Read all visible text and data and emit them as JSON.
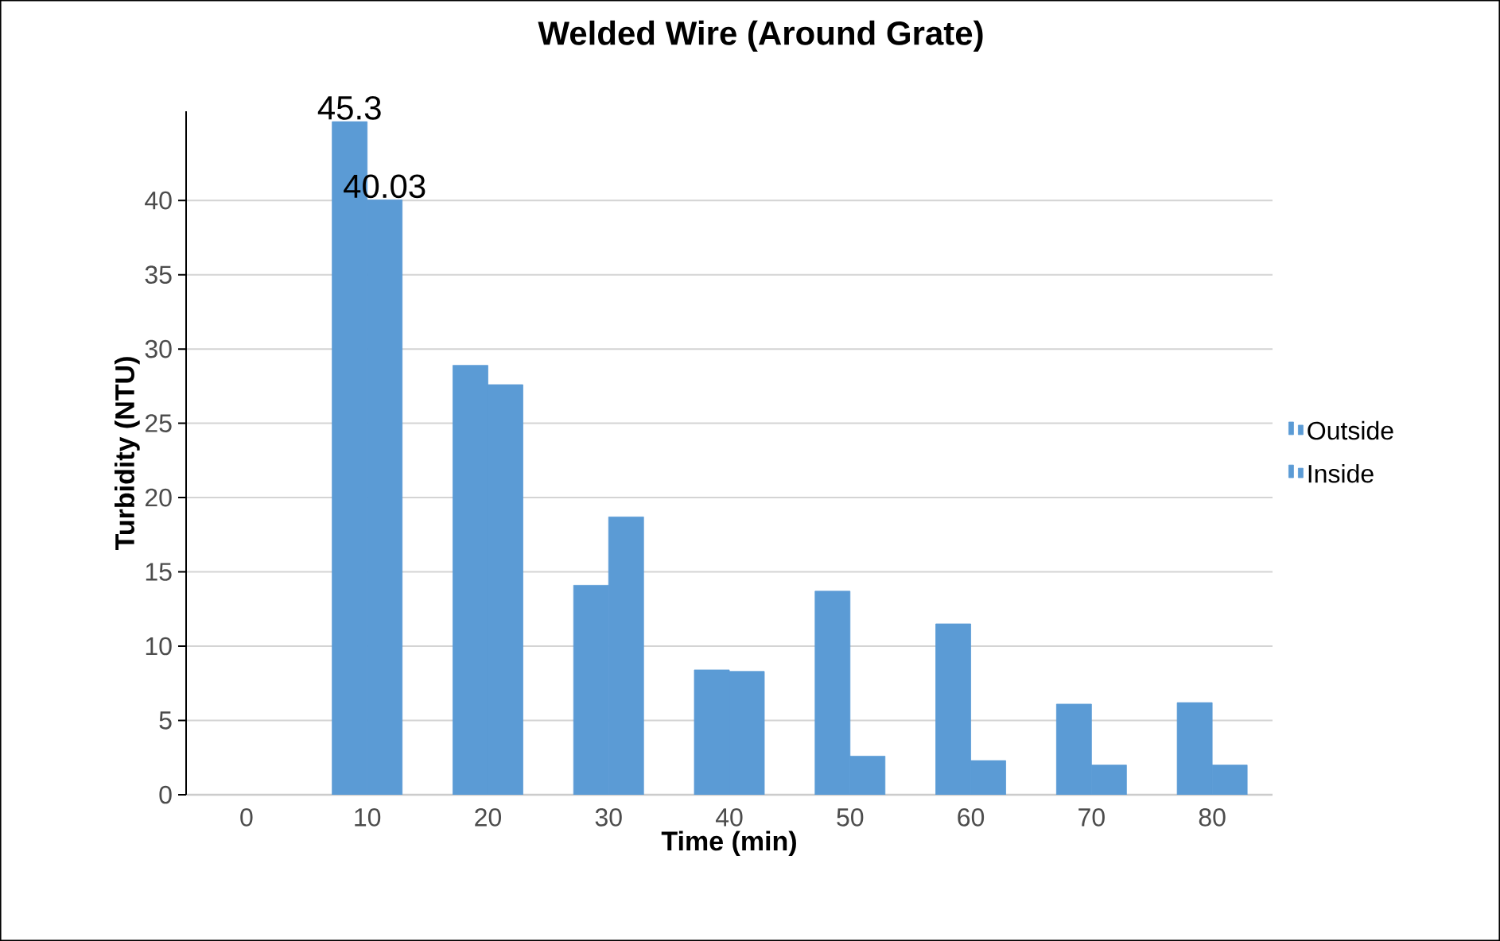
{
  "chart_data": {
    "type": "bar",
    "title": "Welded Wire (Around Grate)",
    "xlabel": "Time (min)",
    "ylabel": "Turbidity (NTU)",
    "categories": [
      "0",
      "10",
      "20",
      "30",
      "40",
      "50",
      "60",
      "70",
      "80"
    ],
    "series": [
      {
        "name": "Outside",
        "color": "#5b9bd5",
        "values": [
          null,
          45.3,
          28.9,
          14.1,
          8.4,
          13.7,
          11.5,
          6.1,
          6.2
        ],
        "value_labels": [
          null,
          "45.3",
          null,
          null,
          null,
          null,
          null,
          null,
          null
        ]
      },
      {
        "name": "Inside",
        "color": "#5b9bd5",
        "values": [
          null,
          40.03,
          27.6,
          18.7,
          8.3,
          2.6,
          2.3,
          2.0,
          2.0
        ],
        "value_labels": [
          null,
          "40.03",
          null,
          null,
          null,
          null,
          null,
          null,
          null
        ]
      }
    ],
    "ylim": [
      0,
      46
    ],
    "yticks": [
      0,
      5,
      10,
      15,
      20,
      25,
      30,
      35,
      40
    ],
    "grid": "y",
    "legend": "right"
  }
}
